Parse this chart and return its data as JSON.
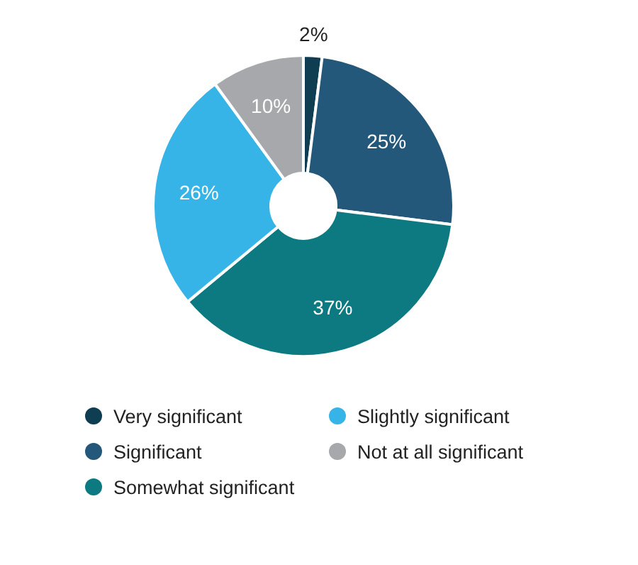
{
  "chart_data": {
    "type": "donut",
    "categories": [
      "Very significant",
      "Significant",
      "Somewhat significant",
      "Slightly significant",
      "Not at all significant"
    ],
    "values": [
      2,
      25,
      37,
      26,
      10
    ],
    "colors": [
      "#0f3d52",
      "#24587b",
      "#0c7a80",
      "#36b4e7",
      "#a6a8ab"
    ],
    "value_labels": [
      "2%",
      "25%",
      "37%",
      "26%",
      "10%"
    ],
    "legend": "bottom"
  }
}
